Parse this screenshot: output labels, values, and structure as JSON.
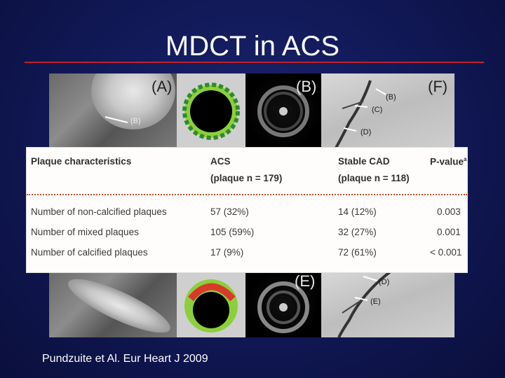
{
  "slide": {
    "title": "MDCT in ACS",
    "citation": "Pundzuite et Al. Eur Heart J 2009"
  },
  "figure": {
    "panel_labels": {
      "a": "(A)",
      "b_top": "(B)",
      "f": "(F)",
      "e": "(E)"
    },
    "ct_arrow_label": "(B)",
    "angio_top_labels": [
      "(B)",
      "(C)",
      "(D)"
    ],
    "angio_bottom_labels": [
      "(D)",
      "(E)"
    ]
  },
  "table": {
    "headers": {
      "characteristic": "Plaque characteristics",
      "acs": "ACS",
      "acs_sub": "(plaque n = 179)",
      "stable": "Stable CAD",
      "stable_sub": "(plaque n = 118)",
      "pvalue": "P-value",
      "pvalue_sup": "a"
    },
    "rows": [
      {
        "label": "Number of non-calcified plaques",
        "acs": "57 (32%)",
        "stable": "14 (12%)",
        "p": "0.003"
      },
      {
        "label": "Number of mixed plaques",
        "acs": "105 (59%)",
        "stable": "32 (27%)",
        "p": "0.001"
      },
      {
        "label": "Number of calcified plaques",
        "acs": "17 (9%)",
        "stable": "72 (61%)",
        "p": "< 0.001"
      }
    ]
  },
  "colors": {
    "title_rule": "#c0202a",
    "table_divider": "#d24a2e"
  }
}
